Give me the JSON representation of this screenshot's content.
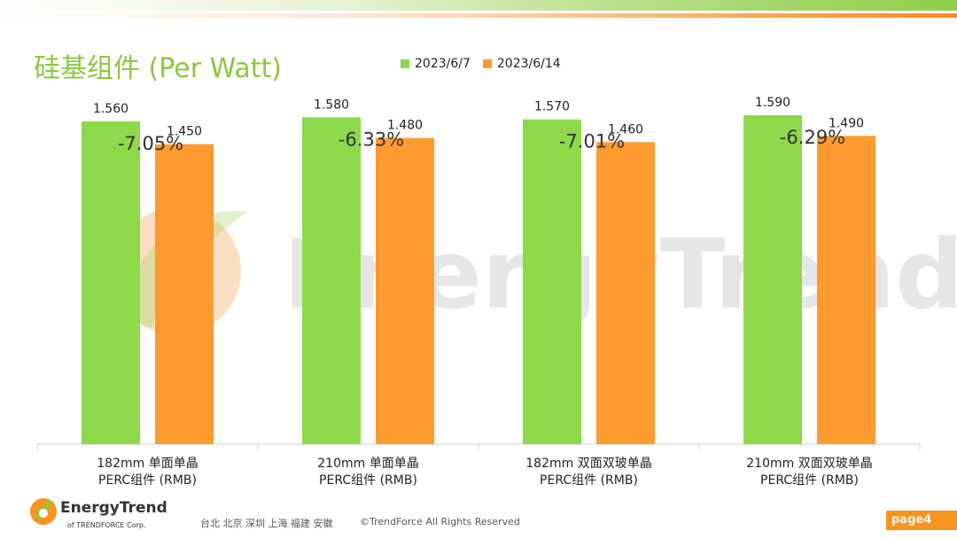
{
  "title": "硅基组件 (Per Watt)",
  "footer": {
    "cities": "台北 北京 深圳 上海 福建 安徽",
    "copyright": "©TrendForce All Rights Reserved",
    "page": "page4",
    "logo_name": "EnergyTrend",
    "logo_sub": "of TRENDFORCE Corp."
  },
  "watermark": "EnergyTrend",
  "colors": {
    "green": "#8dd94a",
    "orange": "#ff9a2e",
    "title": "#8dc63f",
    "accent": "#f7941d"
  },
  "chart_data": {
    "type": "bar",
    "title": "硅基组件 (Per Watt)",
    "categories": [
      [
        "182mm 单面单晶",
        "PERC组件 (RMB)"
      ],
      [
        "210mm 单面单晶",
        "PERC组件 (RMB)"
      ],
      [
        "182mm 双面双玻单晶",
        "PERC组件 (RMB)"
      ],
      [
        "210mm 双面双玻单晶",
        "PERC组件 (RMB)"
      ]
    ],
    "series": [
      {
        "name": "2023/6/7",
        "values": [
          1.56,
          1.58,
          1.57,
          1.59
        ],
        "labels": [
          "1.560",
          "1.580",
          "1.570",
          "1.590"
        ],
        "color": "#8dd94a"
      },
      {
        "name": "2023/6/14",
        "values": [
          1.45,
          1.48,
          1.46,
          1.49
        ],
        "labels": [
          "1.450",
          "1.480",
          "1.460",
          "1.490"
        ],
        "color": "#ff9a2e"
      }
    ],
    "annotations": [
      "-7.05%",
      "-6.33%",
      "-7.01%",
      "-6.29%"
    ],
    "legend": "top",
    "grid": false
  }
}
